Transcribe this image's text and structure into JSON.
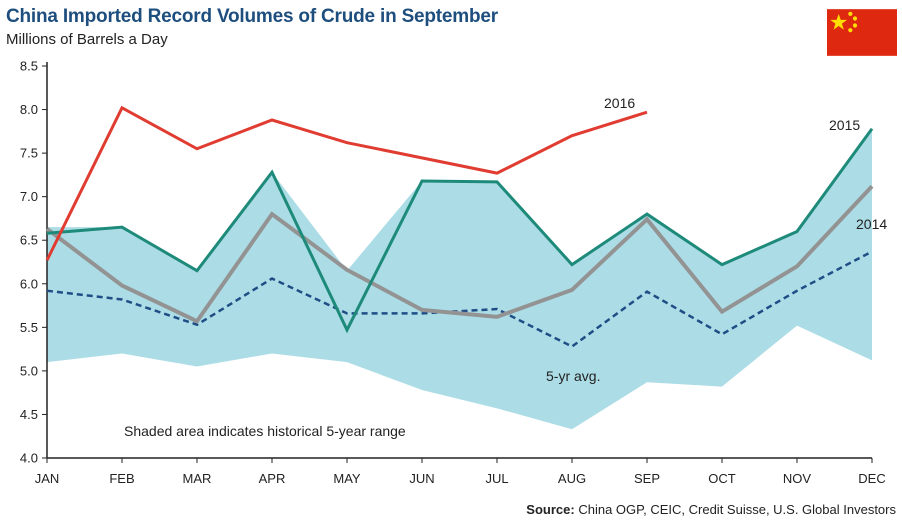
{
  "header": {
    "title": "China Imported Record Volumes of Crude in September",
    "subtitle": "Millions of Barrels a Day"
  },
  "flag": {
    "icon": "china-flag-icon",
    "red": "#de2910",
    "yellow": "#ffde00"
  },
  "source": {
    "label": "Source:",
    "text": "China OGP, CEIC, Credit Suisse, U.S. Global Investors"
  },
  "chart_data": {
    "type": "line",
    "title": "China Imported Record Volumes of Crude in September",
    "ylabel": "Millions of Barrels a Day",
    "xlabel": "",
    "categories": [
      "JAN",
      "FEB",
      "MAR",
      "APR",
      "MAY",
      "JUN",
      "JUL",
      "AUG",
      "SEP",
      "OCT",
      "NOV",
      "DEC"
    ],
    "ylim": [
      4.0,
      8.5
    ],
    "yticks": [
      "4.0",
      "4.5",
      "5.0",
      "5.5",
      "6.0",
      "6.5",
      "7.0",
      "7.5",
      "8.0",
      "8.5"
    ],
    "grid": false,
    "range_band": {
      "color": "#acdde6",
      "upper": [
        6.65,
        6.65,
        6.15,
        7.28,
        6.15,
        7.18,
        7.17,
        6.22,
        6.8,
        6.22,
        6.6,
        7.78
      ],
      "lower": [
        5.1,
        5.2,
        5.05,
        5.2,
        5.1,
        4.78,
        4.57,
        4.33,
        4.87,
        4.82,
        5.52,
        5.12
      ]
    },
    "series": [
      {
        "name": "2016",
        "color": "#e03c31",
        "style": "solid",
        "width": 3,
        "values": [
          6.27,
          8.02,
          7.55,
          7.88,
          7.62,
          null,
          7.27,
          7.7,
          7.97,
          null,
          null,
          null
        ],
        "x_index": [
          0,
          1,
          2,
          3,
          4,
          null,
          6,
          7,
          8,
          null,
          null,
          null
        ]
      },
      {
        "name": "2015",
        "color": "#1d8a7a",
        "style": "solid",
        "width": 3,
        "values": [
          6.58,
          6.65,
          6.15,
          7.28,
          5.47,
          7.18,
          7.17,
          6.22,
          6.8,
          6.22,
          6.6,
          7.78
        ]
      },
      {
        "name": "2014",
        "color": "#939393",
        "style": "solid",
        "width": 4,
        "values": [
          6.63,
          5.98,
          5.57,
          6.8,
          6.16,
          5.7,
          5.62,
          5.93,
          6.74,
          5.68,
          6.2,
          7.12
        ]
      },
      {
        "name": "5-yr avg.",
        "color": "#1f4e86",
        "style": "dashed",
        "width": 2.5,
        "values": [
          5.92,
          5.82,
          5.53,
          6.06,
          5.66,
          5.66,
          5.71,
          5.28,
          5.91,
          5.42,
          5.92,
          6.37
        ]
      }
    ],
    "annotations": [
      {
        "text": "2016"
      },
      {
        "text": "2015"
      },
      {
        "text": "2014"
      },
      {
        "text": "5-yr avg."
      },
      {
        "text": "Shaded area indicates historical 5-year range"
      }
    ]
  }
}
